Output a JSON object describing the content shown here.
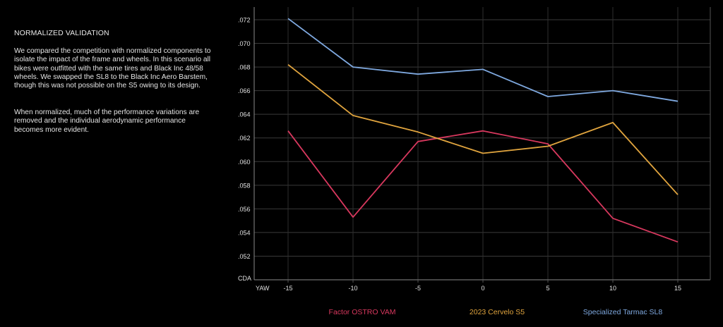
{
  "text": {
    "heading": "NORMALIZED VALIDATION",
    "paragraph1": "We compared the competition with normalized components to isolate the impact of the frame and wheels. In this scenario all bikes were outfitted with the same tires and Black Inc 48/58 wheels. We swapped the SL8 to the Black Inc Aero Barstem, though this was not possible on the S5 owing to its design.",
    "paragraph2": "When normalized, much of the performance variations are removed and the individual aerodynamic performance becomes more evident."
  },
  "chart_data": {
    "type": "line",
    "xlabel": "YAW",
    "ylabel": "CDA",
    "x": [
      -15,
      -10,
      -5,
      0,
      5,
      10,
      15
    ],
    "x_tick_labels": [
      "-15",
      "-10",
      "-5",
      "0",
      "5",
      "10",
      "15"
    ],
    "ylim": [
      0.05,
      0.072
    ],
    "y_ticks": [
      0.052,
      0.054,
      0.056,
      0.058,
      0.06,
      0.062,
      0.064,
      0.066,
      0.068,
      0.07,
      0.072
    ],
    "y_tick_labels": [
      ".052",
      ".054",
      ".056",
      ".058",
      ".060",
      ".062",
      ".064",
      ".066",
      ".068",
      ".070",
      ".072"
    ],
    "grid": true,
    "legend_position": "bottom",
    "series": [
      {
        "name": "Factor OSTRO VAM",
        "color": "#d8385e",
        "values": [
          0.0626,
          0.0553,
          0.0617,
          0.0626,
          0.0615,
          0.0552,
          0.0532
        ]
      },
      {
        "name": "2023 Cervelo S5",
        "color": "#e0a43e",
        "values": [
          0.0682,
          0.0639,
          0.0625,
          0.0607,
          0.0613,
          0.0633,
          0.0572
        ]
      },
      {
        "name": "Specialized Tarmac SL8",
        "color": "#7fa9e0",
        "values": [
          0.0721,
          0.068,
          0.0674,
          0.0678,
          0.0655,
          0.066,
          0.0651
        ]
      }
    ]
  }
}
